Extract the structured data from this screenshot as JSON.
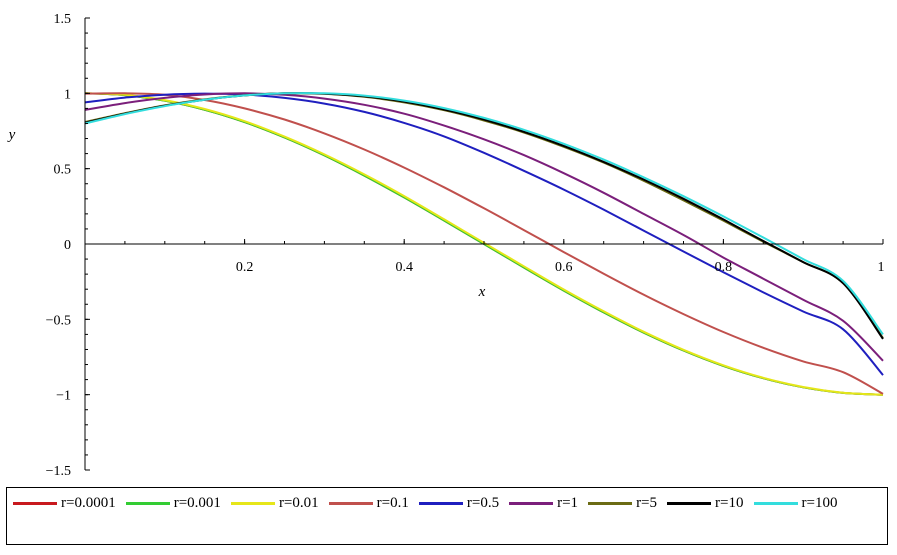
{
  "chart_data": {
    "type": "line",
    "title": "",
    "xlabel": "x",
    "ylabel": "y",
    "xlim": [
      0,
      1
    ],
    "ylim": [
      -1.5,
      1.5
    ],
    "x_ticks": [
      "0.2",
      "0.4",
      "0.6",
      "0.8",
      "1"
    ],
    "y_ticks": [
      "1.5",
      "1",
      "0.5",
      "0",
      "−0.5",
      "−1",
      "−1.5"
    ],
    "grid": false,
    "legend_position": "bottom",
    "x": [
      0,
      0.05,
      0.1,
      0.15,
      0.2,
      0.25,
      0.3,
      0.35,
      0.4,
      0.45,
      0.5,
      0.55,
      0.6,
      0.65,
      0.7,
      0.75,
      0.8,
      0.85,
      0.9,
      0.95,
      1
    ],
    "series": [
      {
        "name": "r=0.0001",
        "color": "#c8191e",
        "values": [
          1.0,
          0.988,
          0.951,
          0.891,
          0.809,
          0.707,
          0.588,
          0.454,
          0.309,
          0.156,
          0.0,
          -0.156,
          -0.309,
          -0.454,
          -0.588,
          -0.707,
          -0.809,
          -0.891,
          -0.951,
          -0.988,
          -1.0
        ]
      },
      {
        "name": "r=0.001",
        "color": "#33cc33",
        "values": [
          1.0,
          0.988,
          0.951,
          0.891,
          0.809,
          0.707,
          0.588,
          0.454,
          0.309,
          0.156,
          0.0,
          -0.156,
          -0.309,
          -0.454,
          -0.588,
          -0.707,
          -0.809,
          -0.891,
          -0.951,
          -0.988,
          -1.0
        ]
      },
      {
        "name": "r=0.01",
        "color": "#e6e619",
        "values": [
          1.0,
          0.99,
          0.955,
          0.896,
          0.815,
          0.713,
          0.595,
          0.462,
          0.318,
          0.164,
          0.008,
          -0.148,
          -0.302,
          -0.447,
          -0.582,
          -0.702,
          -0.805,
          -0.888,
          -0.949,
          -0.987,
          -1.0
        ]
      },
      {
        "name": "r=0.1",
        "color": "#c0504d",
        "values": [
          0.998,
          1.0,
          0.991,
          0.956,
          0.9,
          0.826,
          0.734,
          0.627,
          0.507,
          0.376,
          0.237,
          0.092,
          -0.054,
          -0.197,
          -0.336,
          -0.465,
          -0.584,
          -0.689,
          -0.779,
          -0.851,
          -0.995
        ]
      },
      {
        "name": "r=0.5",
        "color": "#1f1fbf",
        "values": [
          0.94,
          0.972,
          0.991,
          0.998,
          0.992,
          0.97,
          0.932,
          0.877,
          0.804,
          0.714,
          0.605,
          0.486,
          0.361,
          0.228,
          0.089,
          -0.05,
          -0.188,
          -0.321,
          -0.448,
          -0.566,
          -0.87
        ]
      },
      {
        "name": "r=1",
        "color": "#7b1f7b",
        "values": [
          0.89,
          0.935,
          0.97,
          0.992,
          1.0,
          0.99,
          0.965,
          0.924,
          0.865,
          0.786,
          0.695,
          0.59,
          0.47,
          0.34,
          0.2,
          0.06,
          -0.09,
          -0.23,
          -0.37,
          -0.51,
          -0.775
        ]
      },
      {
        "name": "r=5",
        "color": "#6b6b14",
        "values": [
          0.81,
          0.868,
          0.92,
          0.96,
          0.987,
          1.0,
          0.997,
          0.977,
          0.94,
          0.888,
          0.82,
          0.74,
          0.645,
          0.54,
          0.42,
          0.29,
          0.155,
          0.015,
          -0.12,
          -0.26,
          -0.625
        ]
      },
      {
        "name": "r=10",
        "color": "#000000",
        "values": [
          0.805,
          0.865,
          0.918,
          0.958,
          0.986,
          1.0,
          0.998,
          0.98,
          0.945,
          0.893,
          0.826,
          0.745,
          0.651,
          0.545,
          0.428,
          0.3,
          0.163,
          0.02,
          -0.12,
          -0.26,
          -0.63
        ]
      },
      {
        "name": "r=100",
        "color": "#33dddd",
        "values": [
          0.8,
          0.862,
          0.915,
          0.957,
          0.986,
          1.0,
          1.0,
          0.985,
          0.952,
          0.902,
          0.837,
          0.758,
          0.665,
          0.56,
          0.443,
          0.317,
          0.183,
          0.043,
          -0.1,
          -0.245,
          -0.6
        ]
      }
    ]
  }
}
